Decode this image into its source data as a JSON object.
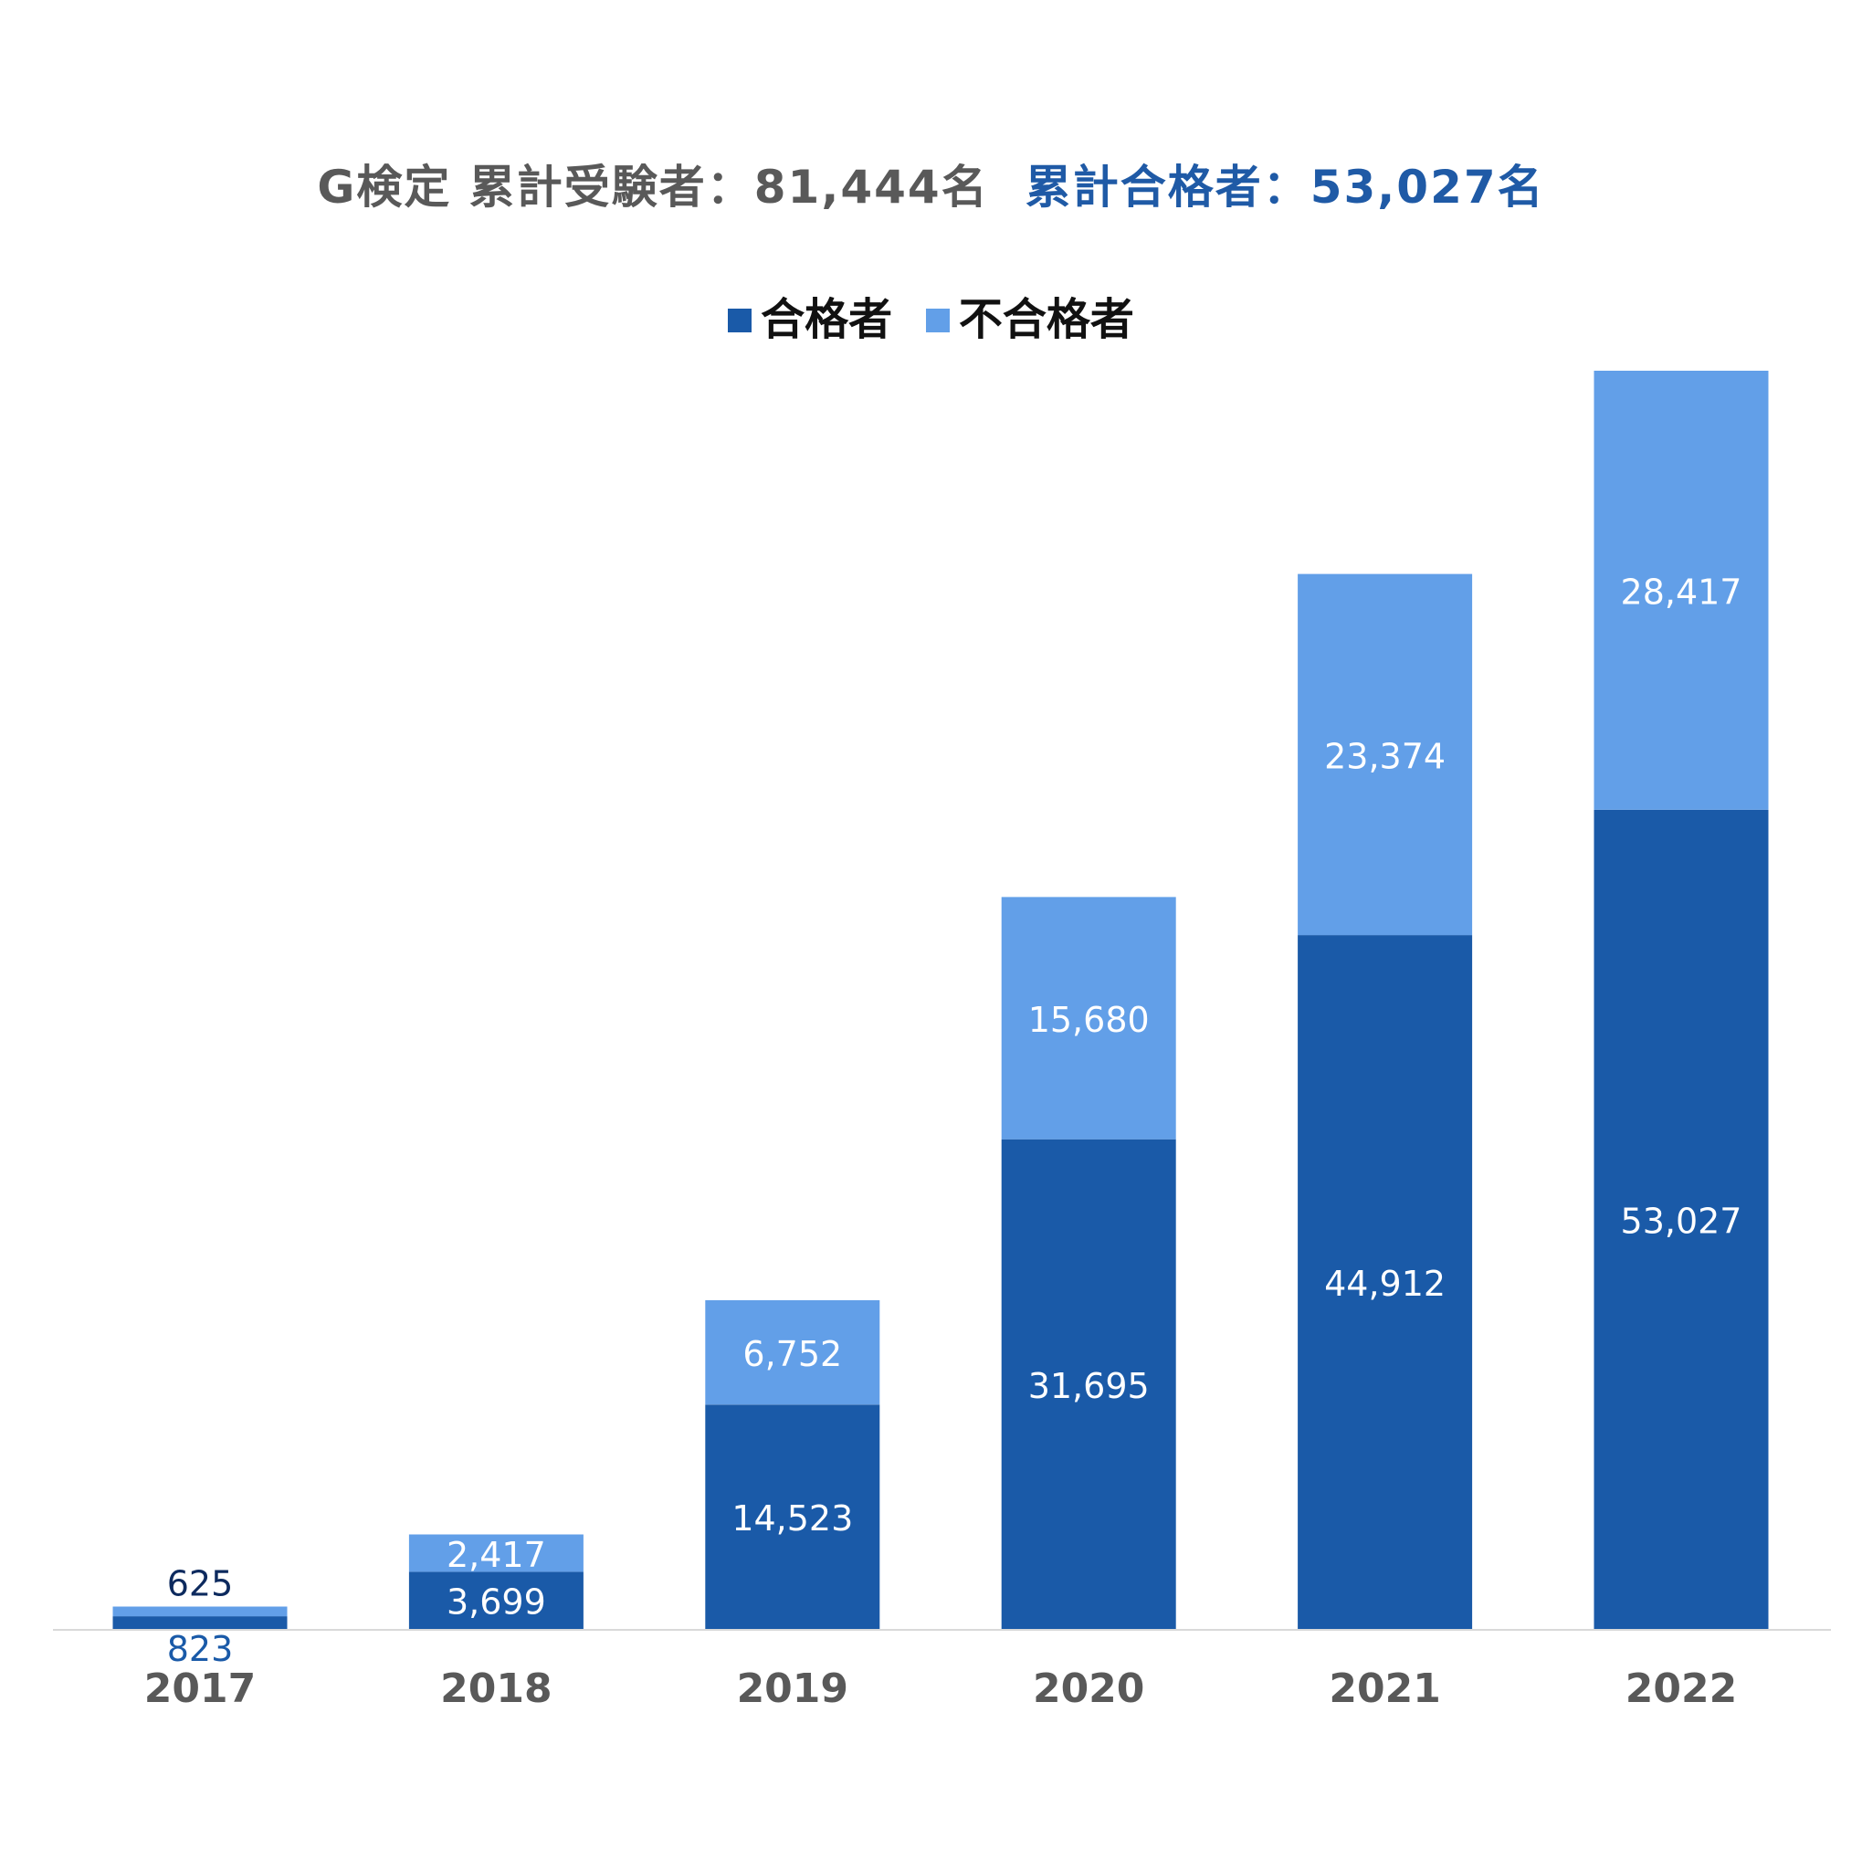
{
  "chart_data": {
    "type": "bar",
    "stacked": true,
    "title": {
      "examinees": "G検定 累計受験者：81,444名",
      "passers": "累計合格者：53,027名"
    },
    "categories": [
      "2017",
      "2018",
      "2019",
      "2020",
      "2021",
      "2022"
    ],
    "series": [
      {
        "name": "合格者",
        "color": "#1a5aa8",
        "values": [
          823,
          3699,
          14523,
          31695,
          44912,
          53027
        ],
        "labels": [
          "823",
          "3,699",
          "14,523",
          "31,695",
          "44,912",
          "53,027"
        ]
      },
      {
        "name": "不合格者",
        "color": "#629fe8",
        "values": [
          625,
          2417,
          6752,
          15680,
          23374,
          28417
        ],
        "labels": [
          "625",
          "2,417",
          "6,752",
          "15,680",
          "23,374",
          "28,417"
        ]
      }
    ],
    "legend_position": "top-center",
    "grid": false,
    "ylim": [
      0,
      82000
    ]
  }
}
